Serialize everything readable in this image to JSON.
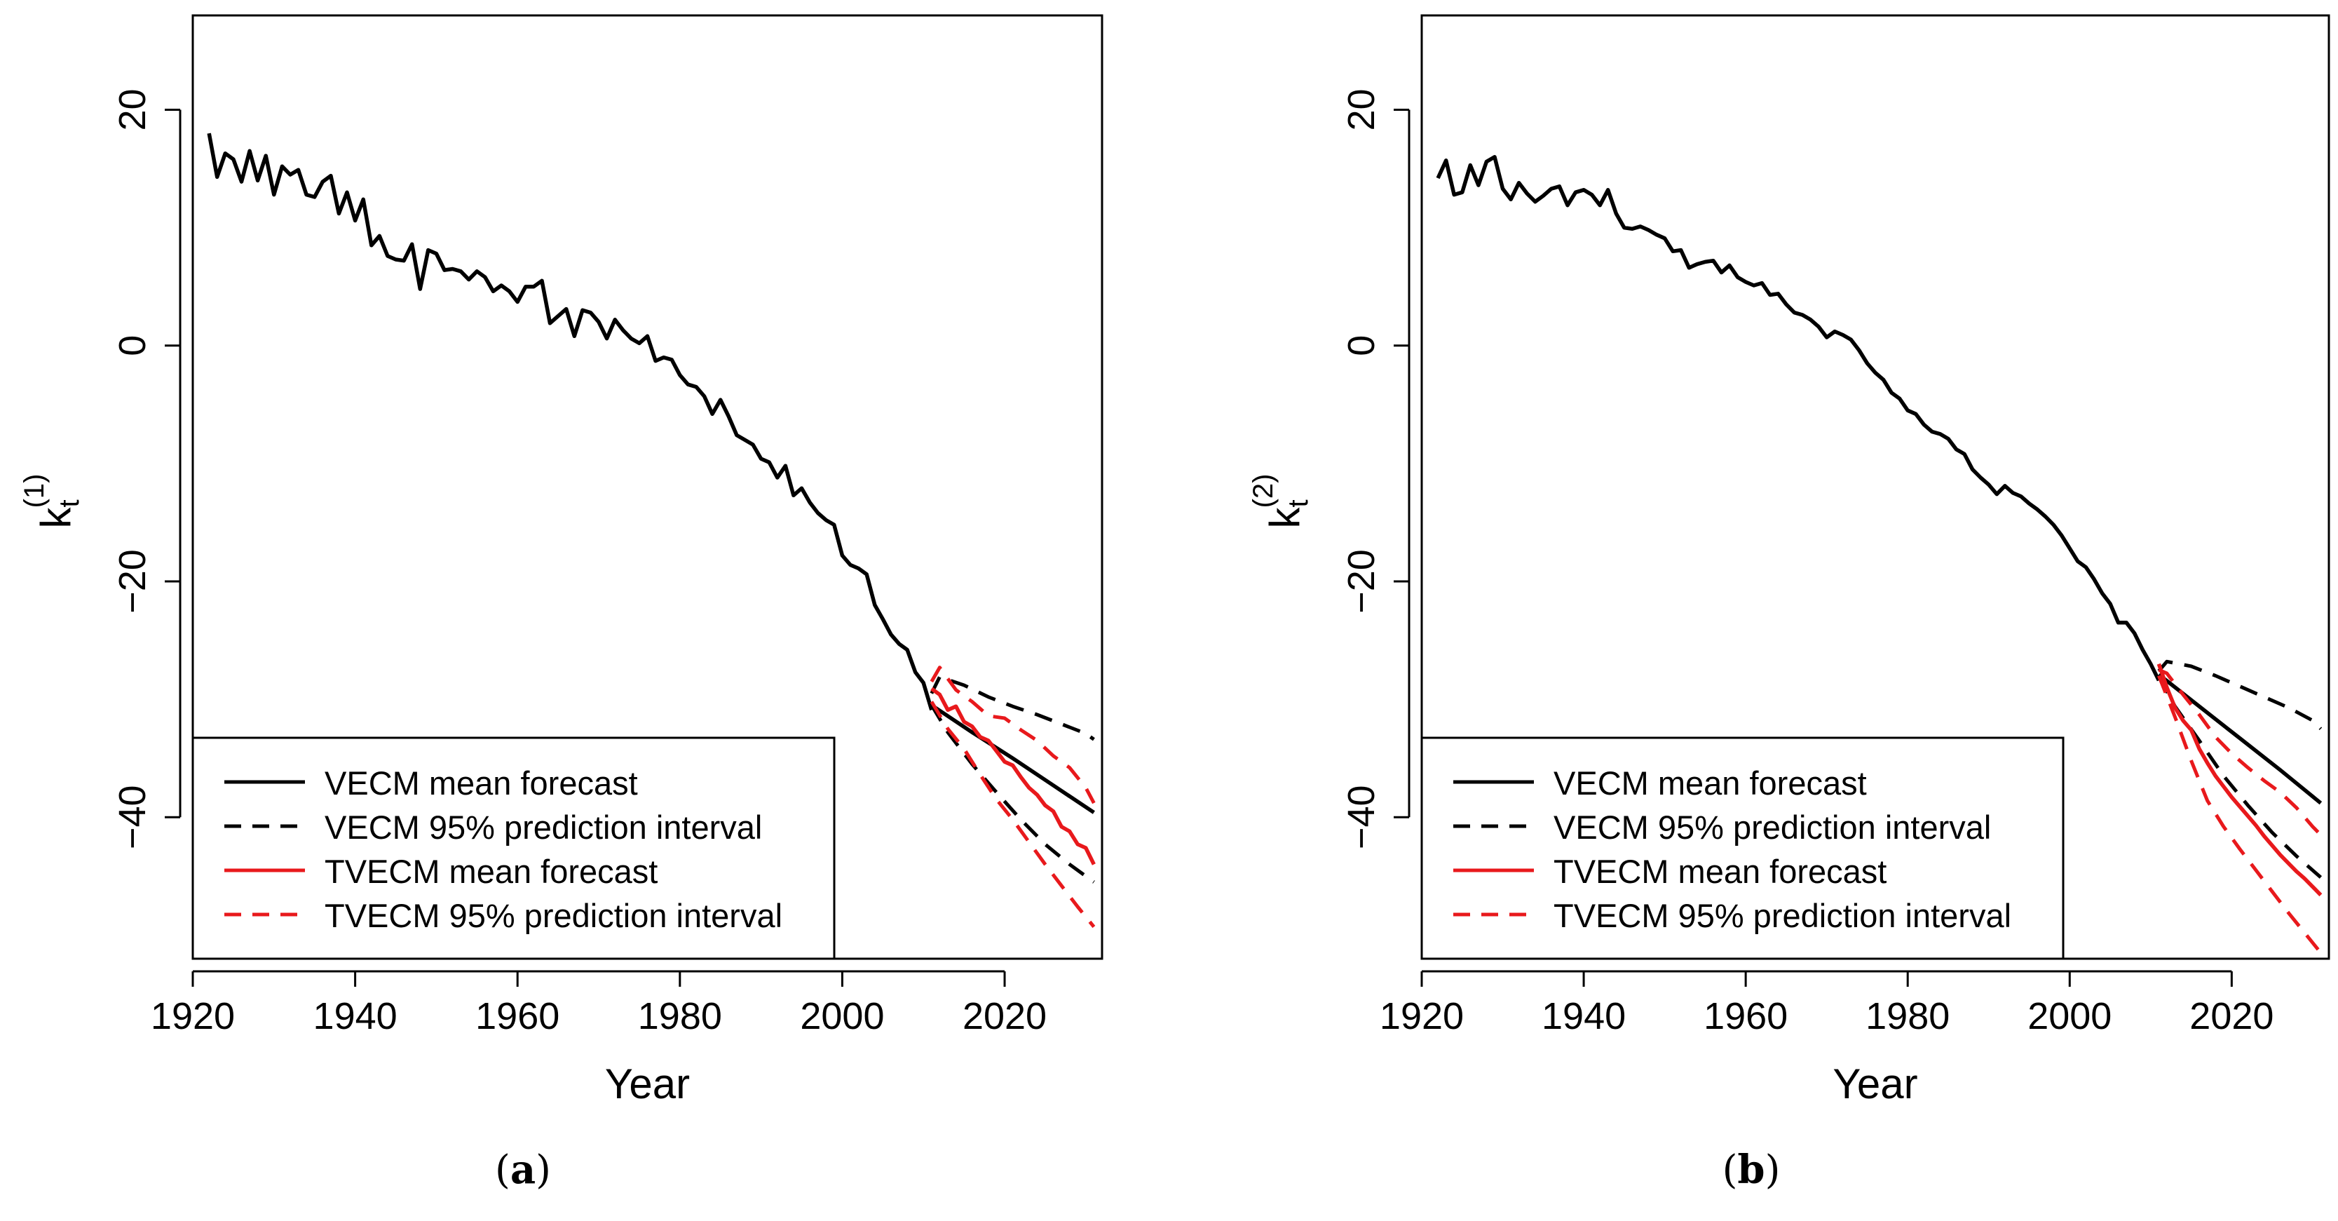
{
  "chart_data": [
    {
      "type": "line",
      "panel_label": "a",
      "xlabel": "Year",
      "ylabel_base": "k",
      "ylabel_sub": "t",
      "ylabel_sup": "(1)",
      "xlim": [
        1920,
        2032
      ],
      "ylim": [
        -52,
        28
      ],
      "xticks": [
        1920,
        1940,
        1960,
        1980,
        2000,
        2020
      ],
      "yticks": [
        20,
        0,
        -20,
        -40
      ],
      "legend": {
        "position": "bottom-left",
        "entries": [
          {
            "label": "VECM mean forecast",
            "color": "#000000",
            "dash": "solid"
          },
          {
            "label": "VECM 95% prediction interval",
            "color": "#000000",
            "dash": "dashed"
          },
          {
            "label": "TVECM mean forecast",
            "color": "#e8191c",
            "dash": "solid"
          },
          {
            "label": "TVECM 95% prediction interval",
            "color": "#e8191c",
            "dash": "dashed"
          }
        ]
      },
      "series": [
        {
          "name": "Historical",
          "color": "#000000",
          "dash": "solid",
          "x": [
            1922,
            1923,
            1924,
            1925,
            1926,
            1927,
            1928,
            1929,
            1930,
            1931,
            1932,
            1933,
            1934,
            1935,
            1936,
            1937,
            1938,
            1939,
            1940,
            1941,
            1942,
            1943,
            1944,
            1945,
            1946,
            1947,
            1948,
            1949,
            1950,
            1951,
            1952,
            1953,
            1954,
            1955,
            1956,
            1957,
            1958,
            1959,
            1960,
            1961,
            1962,
            1963,
            1964,
            1965,
            1966,
            1967,
            1968,
            1969,
            1970,
            1971,
            1972,
            1973,
            1974,
            1975,
            1976,
            1977,
            1978,
            1979,
            1980,
            1981,
            1982,
            1983,
            1984,
            1985,
            1986,
            1987,
            1988,
            1989,
            1990,
            1991,
            1992,
            1993,
            1994,
            1995,
            1996,
            1997,
            1998,
            1999,
            2000,
            2001,
            2002,
            2003,
            2004,
            2005,
            2006,
            2007,
            2008,
            2009,
            2010,
            2011
          ],
          "y": [
            18,
            14.3,
            16.3,
            15.8,
            13.9,
            16.5,
            14,
            16.1,
            12.8,
            15.2,
            14.5,
            14.9,
            12.8,
            12.6,
            13.9,
            14.4,
            11.2,
            13,
            10.6,
            12.4,
            8.5,
            9.3,
            7.6,
            7.3,
            7.2,
            8.6,
            4.8,
            8.1,
            7.8,
            6.4,
            6.5,
            6.3,
            5.6,
            6.3,
            5.8,
            4.6,
            5.1,
            4.6,
            3.7,
            5,
            5,
            5.5,
            1.9,
            2.5,
            3.1,
            0.8,
            3,
            2.8,
            2,
            0.6,
            2.2,
            1.3,
            0.6,
            0.2,
            0.8,
            -1.3,
            -1,
            -1.2,
            -2.5,
            -3.3,
            -3.5,
            -4.3,
            -5.8,
            -4.6,
            -6,
            -7.6,
            -8,
            -8.4,
            -9.6,
            -9.9,
            -11.2,
            -10.2,
            -12.7,
            -12.1,
            -13.3,
            -14.2,
            -14.8,
            -15.2,
            -17.8,
            -18.6,
            -18.9,
            -19.4,
            -22,
            -23.2,
            -24.5,
            -25.3,
            -25.8,
            -27.7,
            -28.6,
            -30.9
          ]
        },
        {
          "name": "VECM mean forecast",
          "color": "#000000",
          "dash": "solid",
          "x": [
            2011,
            2016,
            2021,
            2026,
            2031
          ],
          "y": [
            -30.5,
            -32.8,
            -35,
            -37.3,
            -39.6
          ]
        },
        {
          "name": "VECM 95% prediction interval (upper)",
          "color": "#000000",
          "dash": "dashed",
          "x": [
            2011,
            2012,
            2015,
            2018,
            2021,
            2024,
            2027,
            2030,
            2031
          ],
          "y": [
            -29.5,
            -28.1,
            -28.8,
            -29.8,
            -30.6,
            -31.3,
            -32.1,
            -32.9,
            -33.4
          ]
        },
        {
          "name": "VECM 95% prediction interval (lower)",
          "color": "#000000",
          "dash": "dashed",
          "x": [
            2011,
            2013,
            2016,
            2019,
            2022,
            2025,
            2028,
            2031
          ],
          "y": [
            -30.5,
            -32.8,
            -35.5,
            -37.9,
            -40.2,
            -42.3,
            -44,
            -45.5
          ]
        },
        {
          "name": "TVECM mean forecast",
          "color": "#e8191c",
          "dash": "solid",
          "x": [
            2011,
            2012,
            2013,
            2014,
            2015,
            2016,
            2017,
            2018,
            2019,
            2020,
            2021,
            2022,
            2023,
            2024,
            2025,
            2026,
            2027,
            2028,
            2029,
            2030,
            2031
          ],
          "y": [
            -29.1,
            -29.6,
            -30.9,
            -30.6,
            -31.9,
            -32.3,
            -33.2,
            -33.5,
            -34.4,
            -35.3,
            -35.6,
            -36.6,
            -37.5,
            -38.1,
            -39,
            -39.5,
            -40.8,
            -41.2,
            -42.3,
            -42.6,
            -44
          ]
        },
        {
          "name": "TVECM 95% prediction interval (upper)",
          "color": "#e8191c",
          "dash": "dashed",
          "x": [
            2011,
            2012,
            2014,
            2016,
            2018,
            2020,
            2022,
            2024,
            2026,
            2028,
            2030,
            2031
          ],
          "y": [
            -28.5,
            -27.3,
            -29.2,
            -30.2,
            -31.4,
            -31.6,
            -32.6,
            -33.5,
            -34.8,
            -35.8,
            -37.5,
            -38.8
          ]
        },
        {
          "name": "TVECM 95% prediction interval (lower)",
          "color": "#e8191c",
          "dash": "dashed",
          "x": [
            2011,
            2013,
            2015,
            2017,
            2019,
            2021,
            2023,
            2025,
            2027,
            2029,
            2031
          ],
          "y": [
            -30.2,
            -32.5,
            -34.2,
            -36.4,
            -38.5,
            -40.2,
            -42.1,
            -44,
            -45.8,
            -47.6,
            -49.3
          ]
        }
      ]
    },
    {
      "type": "line",
      "panel_label": "b",
      "xlabel": "Year",
      "ylabel_base": "k",
      "ylabel_sub": "t",
      "ylabel_sup": "(2)",
      "xlim": [
        1920,
        2032
      ],
      "ylim": [
        -52,
        28
      ],
      "xticks": [
        1920,
        1940,
        1960,
        1980,
        2000,
        2020
      ],
      "yticks": [
        20,
        0,
        -20,
        -40
      ],
      "legend": {
        "position": "bottom-left",
        "entries": [
          {
            "label": "VECM mean forecast",
            "color": "#000000",
            "dash": "solid"
          },
          {
            "label": "VECM 95% prediction interval",
            "color": "#000000",
            "dash": "dashed"
          },
          {
            "label": "TVECM mean forecast",
            "color": "#e8191c",
            "dash": "solid"
          },
          {
            "label": "TVECM 95% prediction interval",
            "color": "#e8191c",
            "dash": "dashed"
          }
        ]
      },
      "series": [
        {
          "name": "Historical",
          "color": "#000000",
          "dash": "solid",
          "x": [
            1922,
            1923,
            1924,
            1925,
            1926,
            1927,
            1928,
            1929,
            1930,
            1931,
            1932,
            1933,
            1934,
            1935,
            1936,
            1937,
            1938,
            1939,
            1940,
            1941,
            1942,
            1943,
            1944,
            1945,
            1946,
            1947,
            1948,
            1949,
            1950,
            1951,
            1952,
            1953,
            1954,
            1955,
            1956,
            1957,
            1958,
            1959,
            1960,
            1961,
            1962,
            1963,
            1964,
            1965,
            1966,
            1967,
            1968,
            1969,
            1970,
            1971,
            1972,
            1973,
            1974,
            1975,
            1976,
            1977,
            1978,
            1979,
            1980,
            1981,
            1982,
            1983,
            1984,
            1985,
            1986,
            1987,
            1988,
            1989,
            1990,
            1991,
            1992,
            1993,
            1994,
            1995,
            1996,
            1997,
            1998,
            1999,
            2000,
            2001,
            2002,
            2003,
            2004,
            2005,
            2006,
            2007,
            2008,
            2009,
            2010,
            2011
          ],
          "y": [
            14.2,
            15.7,
            12.8,
            13,
            15.3,
            13.6,
            15.6,
            16,
            13.3,
            12.4,
            13.8,
            12.9,
            12.2,
            12.7,
            13.3,
            13.5,
            11.9,
            13,
            13.2,
            12.8,
            11.9,
            13.2,
            11.2,
            10,
            9.9,
            10.1,
            9.8,
            9.4,
            9.1,
            8,
            8.1,
            6.6,
            6.9,
            7.1,
            7.2,
            6.2,
            6.8,
            5.8,
            5.4,
            5.1,
            5.3,
            4.3,
            4.4,
            3.5,
            2.8,
            2.6,
            2.2,
            1.6,
            0.7,
            1.2,
            0.9,
            0.5,
            -0.4,
            -1.5,
            -2.3,
            -2.9,
            -4,
            -4.5,
            -5.5,
            -5.8,
            -6.7,
            -7.3,
            -7.5,
            -7.9,
            -8.8,
            -9.2,
            -10.5,
            -11.2,
            -11.8,
            -12.6,
            -11.9,
            -12.5,
            -12.8,
            -13.4,
            -13.9,
            -14.5,
            -15.2,
            -16.1,
            -17.2,
            -18.3,
            -18.8,
            -19.8,
            -21,
            -21.9,
            -23.5,
            -23.5,
            -24.4,
            -25.8,
            -27,
            -28.4
          ]
        },
        {
          "name": "VECM mean forecast",
          "color": "#000000",
          "dash": "solid",
          "x": [
            2011,
            2016,
            2021,
            2026,
            2031
          ],
          "y": [
            -27.9,
            -30.6,
            -33.3,
            -36,
            -38.8
          ]
        },
        {
          "name": "VECM 95% prediction interval (upper)",
          "color": "#000000",
          "dash": "dashed",
          "x": [
            2011,
            2012,
            2015,
            2018,
            2021,
            2024,
            2027,
            2030,
            2031
          ],
          "y": [
            -27.6,
            -26.8,
            -27.2,
            -28,
            -28.9,
            -29.8,
            -30.7,
            -31.8,
            -32.5
          ]
        },
        {
          "name": "VECM 95% prediction interval (lower)",
          "color": "#000000",
          "dash": "dashed",
          "x": [
            2011,
            2013,
            2016,
            2019,
            2022,
            2025,
            2028,
            2031
          ],
          "y": [
            -28.1,
            -30.6,
            -33.5,
            -36.5,
            -39,
            -41.3,
            -43.3,
            -45.1
          ]
        },
        {
          "name": "TVECM mean forecast",
          "color": "#e8191c",
          "dash": "solid",
          "x": [
            2011,
            2012,
            2013,
            2014,
            2015,
            2016,
            2017,
            2018,
            2019,
            2020,
            2021,
            2022,
            2023,
            2024,
            2025,
            2026,
            2027,
            2028,
            2029,
            2030,
            2031
          ],
          "y": [
            -27,
            -29,
            -30.7,
            -31.8,
            -32.6,
            -34.2,
            -35.4,
            -36.5,
            -37.4,
            -38.3,
            -39.1,
            -39.9,
            -40.7,
            -41.6,
            -42.4,
            -43.2,
            -43.9,
            -44.6,
            -45.2,
            -45.9,
            -46.6
          ]
        },
        {
          "name": "TVECM 95% prediction interval (upper)",
          "color": "#e8191c",
          "dash": "dashed",
          "x": [
            2011,
            2012,
            2014,
            2016,
            2018,
            2020,
            2022,
            2024,
            2026,
            2028,
            2030,
            2031
          ],
          "y": [
            -27.5,
            -27.8,
            -29.6,
            -31.3,
            -33.2,
            -34.6,
            -35.8,
            -36.9,
            -37.9,
            -39.2,
            -40.8,
            -41.5
          ]
        },
        {
          "name": "TVECM 95% prediction interval (lower)",
          "color": "#e8191c",
          "dash": "dashed",
          "x": [
            2011,
            2013,
            2015,
            2017,
            2019,
            2021,
            2023,
            2025,
            2027,
            2029,
            2031
          ],
          "y": [
            -28,
            -31.5,
            -35.2,
            -38.6,
            -40.8,
            -42.7,
            -44.5,
            -46.3,
            -48.1,
            -49.8,
            -51.5
          ]
        }
      ]
    }
  ]
}
